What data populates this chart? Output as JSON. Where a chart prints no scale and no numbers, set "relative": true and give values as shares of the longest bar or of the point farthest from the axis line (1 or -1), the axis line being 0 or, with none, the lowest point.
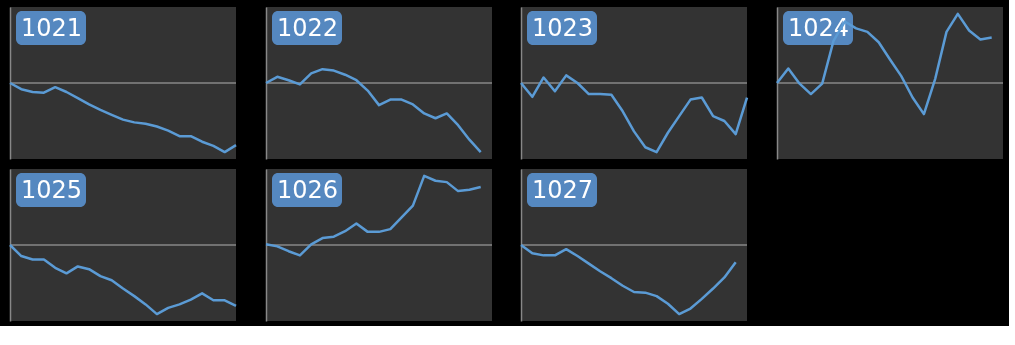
{
  "chart_data": [
    {
      "type": "line",
      "title": "1021",
      "relative": true,
      "color": "#5b9bd5",
      "categories": [
        null,
        null,
        null,
        null,
        null,
        null,
        null,
        null,
        null,
        null,
        null,
        null,
        null,
        null,
        null,
        null,
        null,
        null,
        null,
        null,
        null
      ],
      "values": [
        0,
        -0.09,
        -0.13,
        -0.14,
        -0.06,
        -0.13,
        -0.22,
        -0.31,
        -0.39,
        -0.46,
        -0.53,
        -0.57,
        -0.59,
        -0.63,
        -0.69,
        -0.77,
        -0.77,
        -0.85,
        -0.91,
        -1,
        -0.9
      ]
    },
    {
      "type": "line",
      "title": "1022",
      "relative": true,
      "color": "#5b9bd5",
      "categories": [
        null,
        null,
        null,
        null,
        null,
        null,
        null,
        null,
        null,
        null,
        null,
        null,
        null,
        null,
        null,
        null,
        null,
        null,
        null,
        null,
        null
      ],
      "values": [
        0,
        0.09,
        0.04,
        -0.02,
        0.14,
        0.2,
        0.18,
        0.12,
        0.04,
        -0.11,
        -0.32,
        -0.24,
        -0.24,
        -0.31,
        -0.44,
        -0.51,
        -0.44,
        -0.61,
        -0.82,
        -1,
        null
      ]
    },
    {
      "type": "line",
      "title": "1023",
      "relative": true,
      "color": "#5b9bd5",
      "categories": [
        null,
        null,
        null,
        null,
        null,
        null,
        null,
        null,
        null,
        null,
        null,
        null,
        null,
        null,
        null,
        null,
        null,
        null,
        null,
        null,
        null
      ],
      "values": [
        0,
        -0.2,
        0.08,
        -0.12,
        0.11,
        0,
        -0.16,
        -0.16,
        -0.17,
        -0.41,
        -0.7,
        -0.93,
        -1,
        -0.72,
        -0.48,
        -0.24,
        -0.21,
        -0.48,
        -0.55,
        -0.74,
        -0.21
      ]
    },
    {
      "type": "line",
      "title": "1024",
      "relative": true,
      "color": "#5b9bd5",
      "categories": [
        null,
        null,
        null,
        null,
        null,
        null,
        null,
        null,
        null,
        null,
        null,
        null,
        null,
        null,
        null,
        null,
        null,
        null,
        null,
        null,
        null
      ],
      "values": [
        0,
        0.21,
        -0.01,
        -0.16,
        -0.01,
        0.61,
        0.89,
        0.79,
        0.74,
        0.59,
        0.34,
        0.1,
        -0.21,
        -0.45,
        0.06,
        0.74,
        1,
        0.76,
        0.63,
        0.66,
        null
      ]
    },
    {
      "type": "line",
      "title": "1025",
      "relative": true,
      "color": "#5b9bd5",
      "categories": [
        null,
        null,
        null,
        null,
        null,
        null,
        null,
        null,
        null,
        null,
        null,
        null,
        null,
        null,
        null,
        null,
        null,
        null,
        null,
        null,
        null
      ],
      "values": [
        0,
        -0.16,
        -0.21,
        -0.21,
        -0.33,
        -0.41,
        -0.31,
        -0.35,
        -0.45,
        -0.51,
        -0.63,
        -0.74,
        -0.86,
        -1,
        -0.91,
        -0.86,
        -0.79,
        -0.7,
        -0.8,
        -0.8,
        -0.88
      ]
    },
    {
      "type": "line",
      "title": "1026",
      "relative": true,
      "color": "#5b9bd5",
      "categories": [
        null,
        null,
        null,
        null,
        null,
        null,
        null,
        null,
        null,
        null,
        null,
        null,
        null,
        null,
        null,
        null,
        null,
        null,
        null,
        null,
        null
      ],
      "values": [
        0.01,
        -0.02,
        -0.09,
        -0.15,
        0.01,
        0.1,
        0.12,
        0.2,
        0.31,
        0.19,
        0.19,
        0.23,
        0.4,
        0.57,
        1,
        0.93,
        0.91,
        0.78,
        0.8,
        0.84,
        null
      ]
    },
    {
      "type": "line",
      "title": "1027",
      "relative": true,
      "color": "#5b9bd5",
      "categories": [
        null,
        null,
        null,
        null,
        null,
        null,
        null,
        null,
        null,
        null,
        null,
        null,
        null,
        null,
        null,
        null,
        null,
        null,
        null,
        null,
        null
      ],
      "values": [
        0,
        -0.12,
        -0.15,
        -0.15,
        -0.06,
        -0.16,
        -0.27,
        -0.38,
        -0.48,
        -0.59,
        -0.68,
        -0.69,
        -0.74,
        -0.85,
        -1,
        -0.92,
        -0.78,
        -0.63,
        -0.47,
        -0.25,
        null
      ]
    }
  ]
}
